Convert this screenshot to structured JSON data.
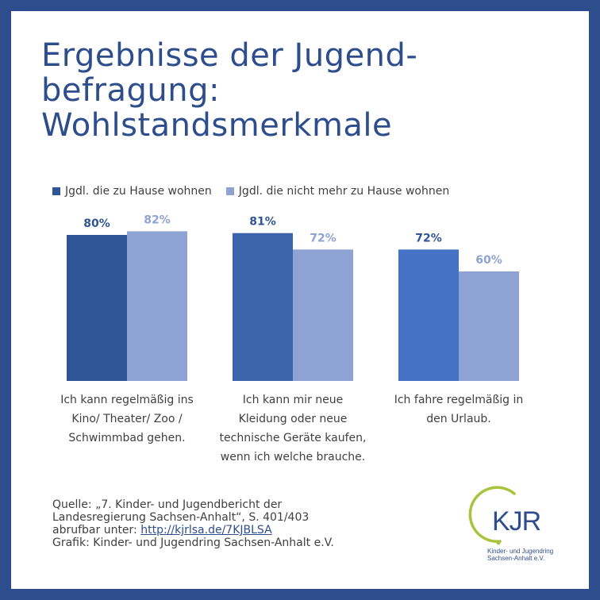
{
  "title": {
    "line1": "Ergebnisse der Jugend-",
    "line2": "befragung:",
    "line3": "Wohlstandsmerkmale"
  },
  "chart_data": {
    "type": "bar",
    "title": "Ergebnisse der Jugendbefragung: Wohlstandsmerkmale",
    "categories": [
      [
        "Ich kann regelmäßig ins",
        "Kino/ Theater/ Zoo /",
        "Schwimmbad gehen."
      ],
      [
        "Ich kann mir neue",
        "Kleidung oder neue",
        "technische Geräte kaufen,",
        "wenn ich welche brauche."
      ],
      [
        "Ich fahre regelmäßig in",
        "den Urlaub."
      ]
    ],
    "series": [
      {
        "name": "Jgdl. die zu Hause wohnen",
        "values": [
          80,
          81,
          72
        ],
        "labels": [
          "80%",
          "81%",
          "72%"
        ],
        "colors": [
          "#2f5597",
          "#3b64ad",
          "#4472c4"
        ]
      },
      {
        "name": "Jgdl. die nicht mehr zu Hause wohnen",
        "values": [
          82,
          72,
          60
        ],
        "labels": [
          "82%",
          "72%",
          "60%"
        ],
        "colors": [
          "#8fa2d4",
          "#8fa2d4",
          "#8fa2d4"
        ]
      }
    ],
    "legend_colors": [
      "#2f5597",
      "#8fa2d4"
    ],
    "label_colors": [
      "#2f5597",
      "#8fa2d4"
    ],
    "ylim": [
      0,
      100
    ],
    "grid": false,
    "legend_position": "top-left",
    "xlabel": "",
    "ylabel": ""
  },
  "source": {
    "line1": "Quelle: „7. Kinder- und Jugendbericht der",
    "line2": "Landesregierung Sachsen-Anhalt“, S. 401/403",
    "line3_prefix": "abrufbar unter: ",
    "link": "http://kjrlsa.de/7KJBLSA",
    "line4": "Grafik: Kinder- und Jugendring Sachsen-Anhalt e.V."
  },
  "logo": {
    "mark": "KJR",
    "tagline1": "Kinder- und Jugendring",
    "tagline2": "Sachsen-Anhalt e.V.",
    "ring_color": "#a8c43c",
    "text_color": "#2e4d8c"
  }
}
